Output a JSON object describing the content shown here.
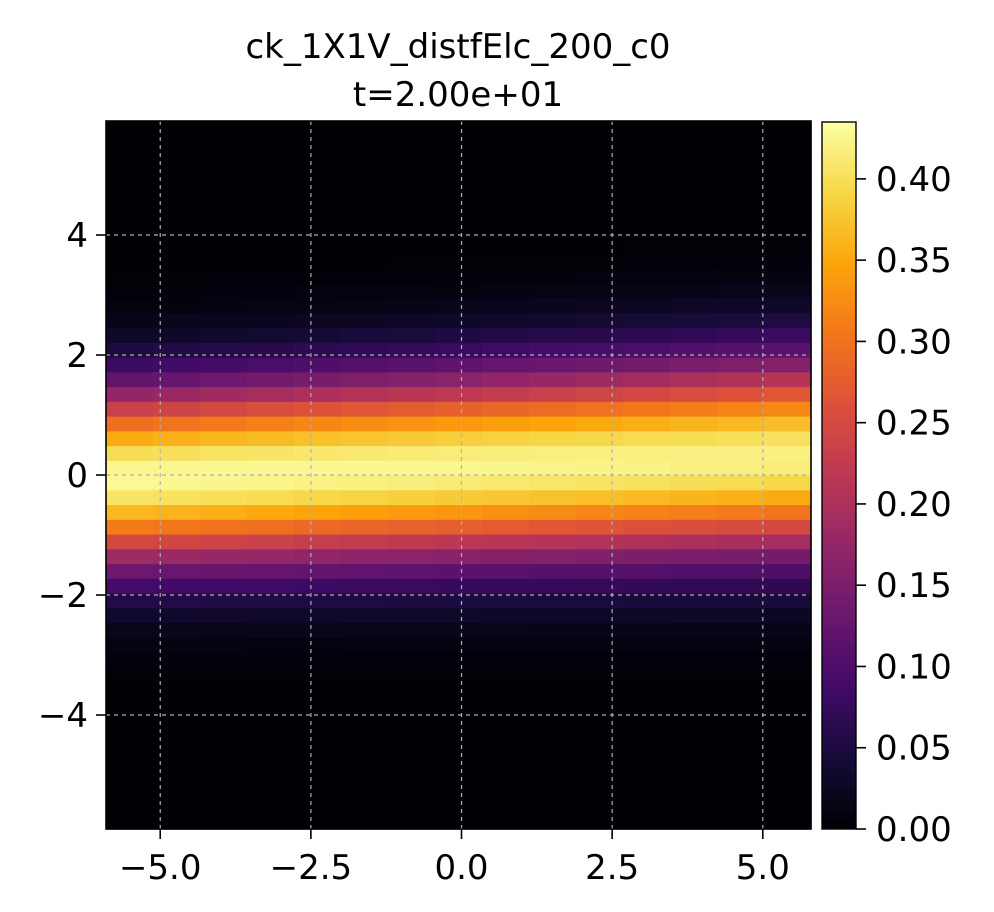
{
  "chart_data": {
    "type": "heatmap",
    "title": "ck_1X1V_distfElc_200_c0",
    "subtitle": "t=2.00e+01",
    "colormap": "inferno",
    "grid": true,
    "x_range": [
      -5.9,
      5.8
    ],
    "y_range": [
      -5.9,
      5.9
    ],
    "x_ticks": [
      -5.0,
      -2.5,
      0.0,
      2.5,
      5.0
    ],
    "x_tick_labels": [
      "−5.0",
      "−2.5",
      "0.0",
      "2.5",
      "5.0"
    ],
    "y_ticks": [
      -4,
      -2,
      0,
      2,
      4
    ],
    "y_tick_labels": [
      "−4",
      "−2",
      "0",
      "2",
      "4"
    ],
    "x_cells": 15,
    "y_cells": 48,
    "drift": {
      "y_center_at_x_min": -0.04,
      "y_center_at_x_max": 0.3
    },
    "spread": {
      "sigma_at_x_min": 1.02,
      "sigma_at_x_max": 1.12
    },
    "peak_value": 0.43,
    "colorbar": {
      "min": 0.0,
      "max": 0.435,
      "ticks": [
        0.0,
        0.05,
        0.1,
        0.15,
        0.2,
        0.25,
        0.3,
        0.35,
        0.4
      ],
      "tick_labels": [
        "0.00",
        "0.05",
        "0.10",
        "0.15",
        "0.20",
        "0.25",
        "0.30",
        "0.35",
        "0.40"
      ]
    }
  }
}
